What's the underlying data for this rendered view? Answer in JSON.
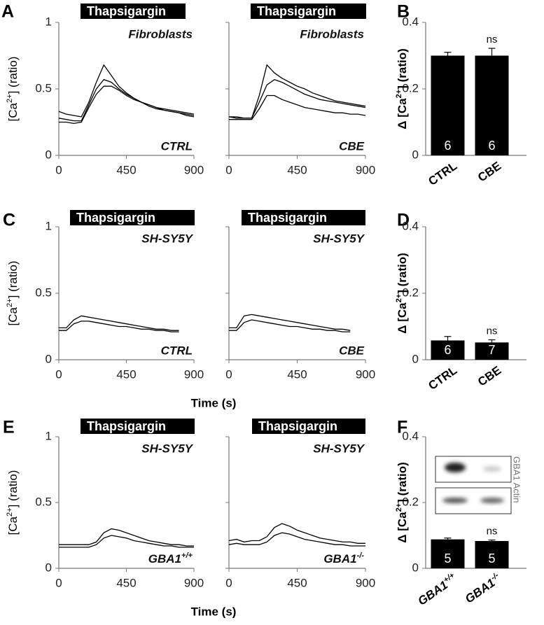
{
  "chart_data": [
    {
      "type": "line",
      "panel_label": "A",
      "annotation_top": "Thapsigargin",
      "cell_type": "Fibroblasts",
      "condition": "CTRL",
      "ylabel": {
        "base": "[Ca",
        "sup": "2+",
        "tail": "] (ratio)"
      },
      "x": [
        0,
        50,
        100,
        150,
        200,
        250,
        300,
        350,
        400,
        450,
        500,
        550,
        600,
        650,
        700,
        750,
        800,
        850,
        900
      ],
      "series": [
        {
          "color": "#000000",
          "values": [
            0.33,
            0.31,
            0.3,
            0.29,
            0.4,
            0.55,
            0.68,
            0.6,
            0.52,
            0.47,
            0.43,
            0.4,
            0.38,
            0.36,
            0.35,
            0.34,
            0.33,
            0.32,
            0.31
          ]
        },
        {
          "color": "#000000",
          "values": [
            0.28,
            0.27,
            0.26,
            0.26,
            0.38,
            0.5,
            0.57,
            0.55,
            0.5,
            0.46,
            0.43,
            0.4,
            0.38,
            0.36,
            0.34,
            0.33,
            0.32,
            0.31,
            0.3
          ]
        },
        {
          "color": "#000000",
          "values": [
            0.25,
            0.25,
            0.24,
            0.25,
            0.36,
            0.46,
            0.52,
            0.52,
            0.49,
            0.45,
            0.42,
            0.4,
            0.37,
            0.35,
            0.34,
            0.33,
            0.32,
            0.3,
            0.29
          ]
        }
      ],
      "xlim": [
        0,
        900
      ],
      "xticks": [
        0,
        450,
        900
      ],
      "ylim": [
        0,
        1
      ],
      "yticks": [
        0,
        0.5,
        1
      ]
    },
    {
      "type": "line",
      "annotation_top": "Thapsigargin",
      "cell_type": "Fibroblasts",
      "condition": "CBE",
      "x": [
        0,
        50,
        100,
        150,
        200,
        250,
        300,
        350,
        400,
        450,
        500,
        550,
        600,
        650,
        700,
        750,
        800,
        850,
        900
      ],
      "series": [
        {
          "color": "#000000",
          "values": [
            0.29,
            0.29,
            0.28,
            0.28,
            0.45,
            0.68,
            0.62,
            0.58,
            0.55,
            0.52,
            0.5,
            0.47,
            0.45,
            0.43,
            0.41,
            0.4,
            0.39,
            0.38,
            0.37
          ]
        },
        {
          "color": "#000000",
          "values": [
            0.29,
            0.28,
            0.28,
            0.28,
            0.4,
            0.53,
            0.57,
            0.55,
            0.52,
            0.49,
            0.46,
            0.44,
            0.42,
            0.41,
            0.4,
            0.39,
            0.38,
            0.37,
            0.36
          ]
        },
        {
          "color": "#000000",
          "values": [
            0.27,
            0.27,
            0.27,
            0.27,
            0.35,
            0.45,
            0.45,
            0.42,
            0.4,
            0.38,
            0.36,
            0.35,
            0.34,
            0.33,
            0.32,
            0.32,
            0.31,
            0.31,
            0.3
          ]
        }
      ],
      "xlim": [
        0,
        900
      ],
      "xticks": [
        0,
        450,
        900
      ],
      "ylim": [
        0,
        1
      ],
      "yticks": [
        0,
        0.5,
        1
      ]
    },
    {
      "type": "bar",
      "panel_label": "B",
      "ylabel": {
        "base": "Δ [Ca",
        "sup": "2+",
        "tail": "] (ratio)"
      },
      "categories": [
        "CTRL",
        "CBE"
      ],
      "values": [
        0.3,
        0.3
      ],
      "errors": [
        0.01,
        0.022
      ],
      "n_labels": [
        "6",
        "6"
      ],
      "significance": [
        null,
        "ns"
      ],
      "color": "#000000",
      "ylim": [
        0,
        0.4
      ],
      "yticks": [
        0,
        0.2,
        0.4
      ]
    },
    {
      "type": "line",
      "panel_label": "C",
      "annotation_top": "Thapsigargin",
      "cell_type": "SH-SY5Y",
      "condition": "CTRL",
      "ylabel": {
        "base": "[Ca",
        "sup": "2+",
        "tail": "] (ratio)"
      },
      "xlabel": "Time (s)",
      "x": [
        0,
        50,
        100,
        150,
        200,
        250,
        300,
        350,
        400,
        450,
        500,
        550,
        600,
        650,
        700,
        750,
        800
      ],
      "series": [
        {
          "color": "#000000",
          "values": [
            0.24,
            0.24,
            0.3,
            0.33,
            0.32,
            0.31,
            0.3,
            0.29,
            0.28,
            0.27,
            0.26,
            0.25,
            0.24,
            0.23,
            0.23,
            0.22,
            0.22
          ]
        },
        {
          "color": "#000000",
          "values": [
            0.22,
            0.22,
            0.27,
            0.29,
            0.29,
            0.28,
            0.27,
            0.26,
            0.25,
            0.25,
            0.24,
            0.23,
            0.23,
            0.22,
            0.22,
            0.21,
            0.21
          ]
        }
      ],
      "xlim": [
        0,
        900
      ],
      "xticks": [
        0,
        450,
        900
      ],
      "ylim": [
        0,
        1
      ],
      "yticks": [
        0,
        0.5,
        1
      ]
    },
    {
      "type": "line",
      "annotation_top": "Thapsigargin",
      "cell_type": "SH-SY5Y",
      "condition": "CBE",
      "x": [
        0,
        50,
        100,
        150,
        200,
        250,
        300,
        350,
        400,
        450,
        500,
        550,
        600,
        650,
        700,
        750,
        800
      ],
      "series": [
        {
          "color": "#000000",
          "values": [
            0.24,
            0.24,
            0.33,
            0.34,
            0.33,
            0.32,
            0.31,
            0.3,
            0.29,
            0.28,
            0.27,
            0.26,
            0.25,
            0.24,
            0.23,
            0.23,
            0.22
          ]
        },
        {
          "color": "#000000",
          "values": [
            0.22,
            0.22,
            0.28,
            0.3,
            0.29,
            0.28,
            0.27,
            0.26,
            0.25,
            0.25,
            0.24,
            0.23,
            0.23,
            0.22,
            0.22,
            0.21,
            0.21
          ]
        }
      ],
      "xlim": [
        0,
        900
      ],
      "xticks": [
        0,
        450,
        900
      ],
      "ylim": [
        0,
        1
      ],
      "yticks": [
        0,
        0.5,
        1
      ]
    },
    {
      "type": "bar",
      "panel_label": "D",
      "ylabel": {
        "base": "Δ [Ca",
        "sup": "2+",
        "tail": "] (ratio)"
      },
      "categories": [
        "CTRL",
        "CBE"
      ],
      "values": [
        0.058,
        0.052
      ],
      "errors": [
        0.012,
        0.008
      ],
      "n_labels": [
        "6",
        "7"
      ],
      "significance": [
        null,
        "ns"
      ],
      "color": "#000000",
      "ylim": [
        0,
        0.4
      ],
      "yticks": [
        0,
        0.2,
        0.4
      ]
    },
    {
      "type": "line",
      "panel_label": "E",
      "annotation_top": "Thapsigargin",
      "cell_type": "SH-SY5Y",
      "condition": {
        "base": "GBA1",
        "sup": "+/+"
      },
      "ylabel": {
        "base": "[Ca",
        "sup": "2+",
        "tail": "] (ratio)"
      },
      "xlabel": "Time (s)",
      "x": [
        0,
        50,
        100,
        150,
        200,
        250,
        300,
        350,
        400,
        450,
        500,
        550,
        600,
        650,
        700,
        750,
        800,
        850,
        900
      ],
      "series": [
        {
          "color": "#000000",
          "values": [
            0.18,
            0.18,
            0.18,
            0.18,
            0.18,
            0.2,
            0.27,
            0.3,
            0.29,
            0.27,
            0.25,
            0.23,
            0.21,
            0.2,
            0.19,
            0.18,
            0.18,
            0.17,
            0.17
          ]
        },
        {
          "color": "#000000",
          "values": [
            0.16,
            0.16,
            0.16,
            0.16,
            0.16,
            0.18,
            0.23,
            0.25,
            0.24,
            0.23,
            0.21,
            0.2,
            0.19,
            0.18,
            0.17,
            0.17,
            0.16,
            0.16,
            0.16
          ]
        }
      ],
      "xlim": [
        0,
        900
      ],
      "xticks": [
        0,
        450,
        900
      ],
      "ylim": [
        0,
        1
      ],
      "yticks": [
        0,
        0.5,
        1
      ]
    },
    {
      "type": "line",
      "annotation_top": "Thapsigargin",
      "cell_type": "SH-SY5Y",
      "condition": {
        "base": "GBA1",
        "sup": "-/-"
      },
      "x": [
        0,
        50,
        100,
        150,
        200,
        250,
        300,
        350,
        400,
        450,
        500,
        550,
        600,
        650,
        700,
        750,
        800,
        850,
        900
      ],
      "series": [
        {
          "color": "#000000",
          "values": [
            0.21,
            0.22,
            0.2,
            0.21,
            0.21,
            0.24,
            0.31,
            0.34,
            0.32,
            0.29,
            0.27,
            0.25,
            0.23,
            0.22,
            0.21,
            0.2,
            0.2,
            0.19,
            0.19
          ]
        },
        {
          "color": "#000000",
          "values": [
            0.18,
            0.19,
            0.18,
            0.18,
            0.18,
            0.2,
            0.25,
            0.27,
            0.26,
            0.24,
            0.22,
            0.21,
            0.2,
            0.19,
            0.18,
            0.18,
            0.17,
            0.17,
            0.17
          ]
        }
      ],
      "xlim": [
        0,
        900
      ],
      "xticks": [
        0,
        450,
        900
      ],
      "ylim": [
        0,
        1
      ],
      "yticks": [
        0,
        0.5,
        1
      ]
    },
    {
      "type": "bar",
      "panel_label": "F",
      "ylabel": {
        "base": "Δ [Ca",
        "sup": "2+",
        "tail": "] (ratio)"
      },
      "categories": [
        {
          "base": "GBA1",
          "sup": "+/+"
        },
        {
          "base": "GBA1",
          "sup": "-/-"
        }
      ],
      "values": [
        0.088,
        0.083
      ],
      "errors": [
        0.004,
        0.003
      ],
      "n_labels": [
        "5",
        "5"
      ],
      "significance": [
        null,
        "ns"
      ],
      "color": "#000000",
      "ylim": [
        0,
        0.4
      ],
      "yticks": [
        0,
        0.2,
        0.4
      ],
      "blot_label": "GBA1 Actin"
    }
  ]
}
